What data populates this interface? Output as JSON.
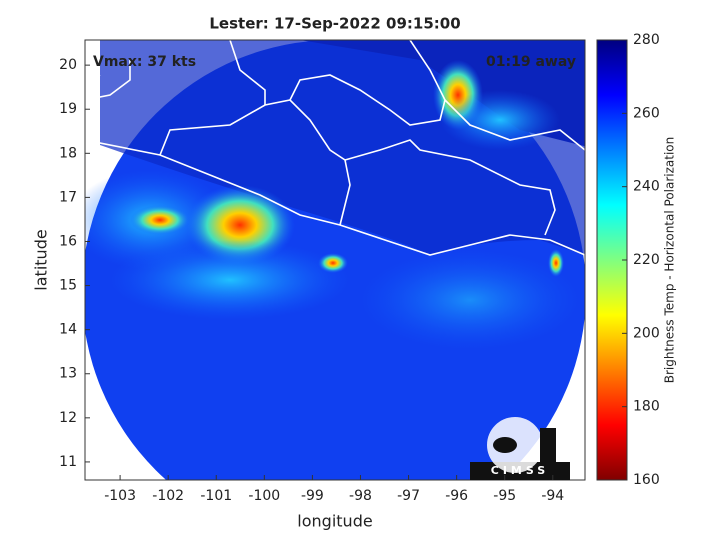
{
  "chart_data": {
    "type": "map",
    "title": "Lester: 17-Sep-2022 09:15:00",
    "x_label": "longitude",
    "y_label": "latitude",
    "annotation_left": "Vmax: 37 kts",
    "annotation_right": "01:19 away",
    "logo_text": "CIMSS",
    "xlim": [
      -103.73,
      -93.33
    ],
    "ylim": [
      10.59,
      20.57
    ],
    "xticks": [
      -103,
      -102,
      -101,
      -100,
      -99,
      -98,
      -97,
      -96,
      -95,
      -94
    ],
    "yticks": [
      11,
      12,
      13,
      14,
      15,
      16,
      17,
      18,
      19,
      20
    ],
    "colorbar": {
      "label": "Brightness Temp - Horizontal Polarization",
      "lim": [
        160,
        280
      ],
      "ticks": [
        160,
        180,
        200,
        220,
        240,
        260,
        280
      ],
      "colormap": [
        "#800000",
        "#ff0000",
        "#ff8000",
        "#ffff00",
        "#80ff80",
        "#00ffff",
        "#0080ff",
        "#0000ff",
        "#000080"
      ]
    }
  }
}
